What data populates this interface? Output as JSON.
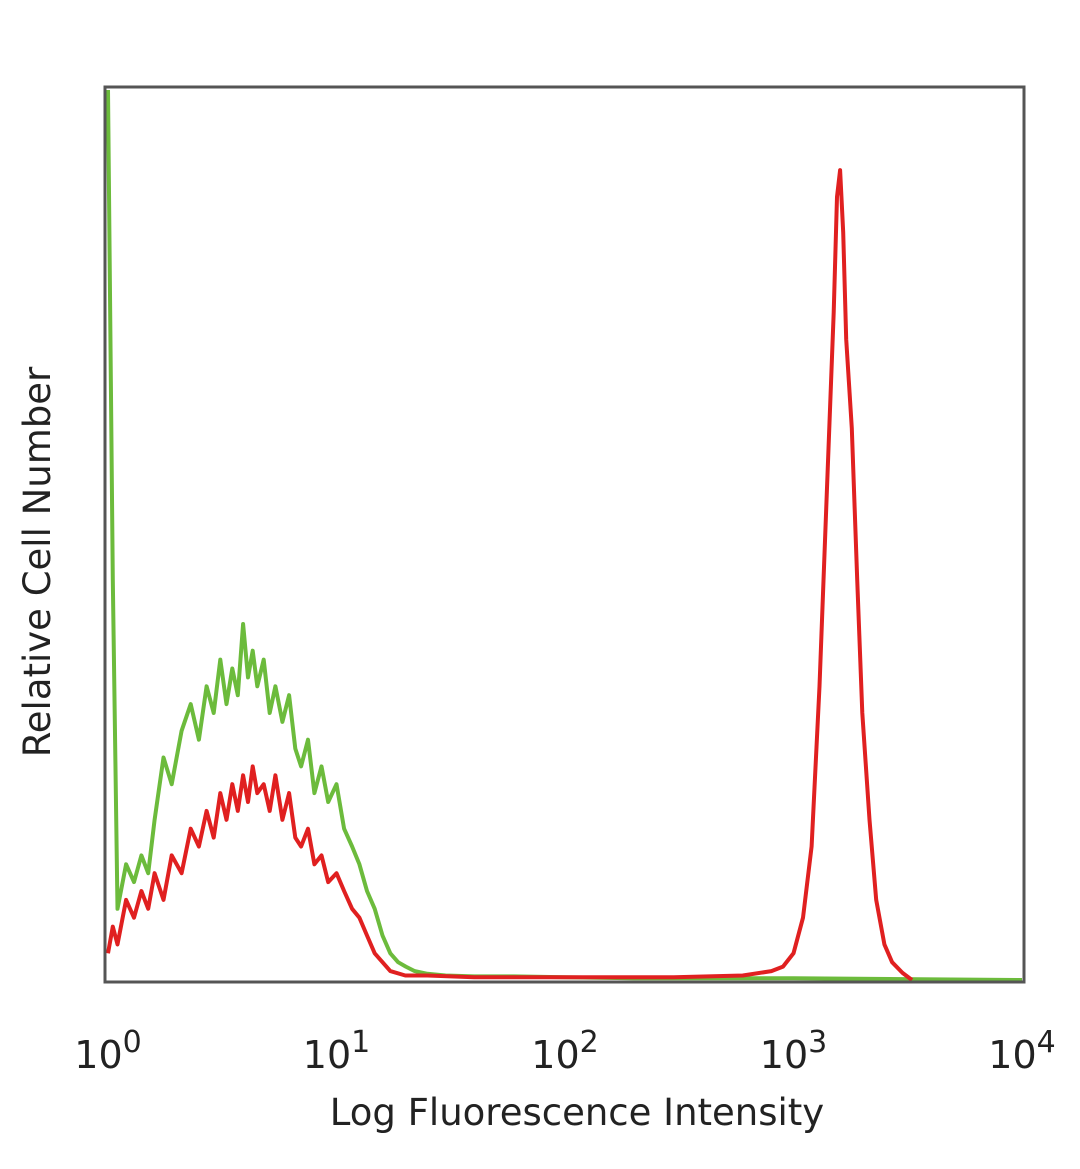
{
  "chart_data": {
    "type": "line",
    "xlabel": "Log Fluorescence Intensity",
    "ylabel": "Relative Cell Number",
    "x_scale": "log",
    "xlim": [
      1,
      10000
    ],
    "ylim": [
      0,
      100
    ],
    "grid": false,
    "x_ticks": [
      {
        "base": "10",
        "exp": "0",
        "value": 1
      },
      {
        "base": "10",
        "exp": "1",
        "value": 10
      },
      {
        "base": "10",
        "exp": "2",
        "value": 100
      },
      {
        "base": "10",
        "exp": "3",
        "value": 1000
      },
      {
        "base": "10",
        "exp": "4",
        "value": 10000
      }
    ],
    "series": [
      {
        "color": "#6cbb3c",
        "x": [
          1.0,
          1.05,
          1.1,
          1.2,
          1.3,
          1.4,
          1.5,
          1.6,
          1.75,
          1.9,
          2.1,
          2.3,
          2.5,
          2.7,
          2.9,
          3.1,
          3.3,
          3.5,
          3.7,
          3.9,
          4.1,
          4.3,
          4.5,
          4.8,
          5.1,
          5.4,
          5.8,
          6.2,
          6.6,
          7.0,
          7.5,
          8.0,
          8.6,
          9.2,
          10.0,
          10.8,
          11.7,
          12.6,
          13.6,
          14.7,
          15.9,
          17.2,
          18.6,
          20.1,
          22.0,
          25.0,
          30.0,
          40.0,
          60.0,
          100.0,
          200.0,
          500.0,
          1000.0,
          3000.0,
          10000.0
        ],
        "values": [
          100,
          45,
          8,
          13,
          11,
          14,
          12,
          18,
          25,
          22,
          28,
          31,
          27,
          33,
          30,
          36,
          31,
          35,
          32,
          40,
          34,
          37,
          33,
          36,
          30,
          33,
          29,
          32,
          26,
          24,
          27,
          21,
          24,
          20,
          22,
          17,
          15,
          13,
          10,
          8,
          5,
          3,
          2,
          1.5,
          1,
          0.7,
          0.5,
          0.4,
          0.4,
          0.3,
          0.2,
          0.2,
          0.2,
          0.1,
          0
        ]
      },
      {
        "color": "#e02020",
        "x": [
          1.0,
          1.05,
          1.1,
          1.2,
          1.3,
          1.4,
          1.5,
          1.6,
          1.75,
          1.9,
          2.1,
          2.3,
          2.5,
          2.7,
          2.9,
          3.1,
          3.3,
          3.5,
          3.7,
          3.9,
          4.1,
          4.3,
          4.5,
          4.8,
          5.1,
          5.4,
          5.8,
          6.2,
          6.6,
          7.0,
          7.5,
          8.0,
          8.6,
          9.2,
          10.0,
          10.8,
          11.7,
          12.6,
          13.6,
          14.7,
          15.9,
          17.2,
          20.0,
          25.0,
          40.0,
          100.0,
          300.0,
          600.0,
          800.0,
          900.0,
          1000.0,
          1100.0,
          1200.0,
          1300.0,
          1400.0,
          1500.0,
          1550.0,
          1600.0,
          1650.0,
          1700.0,
          1800.0,
          1900.0,
          2000.0,
          2150.0,
          2300.0,
          2500.0,
          2700.0,
          3000.0,
          3300.0
        ],
        "values": [
          3,
          6,
          4,
          9,
          7,
          10,
          8,
          12,
          9,
          14,
          12,
          17,
          15,
          19,
          16,
          21,
          18,
          22,
          19,
          23,
          20,
          24,
          21,
          22,
          19,
          23,
          18,
          21,
          16,
          15,
          17,
          13,
          14,
          11,
          12,
          10,
          8,
          7,
          5,
          3,
          2,
          1,
          0.5,
          0.5,
          0.3,
          0.3,
          0.3,
          0.5,
          1,
          1.5,
          3,
          7,
          15,
          33,
          55,
          75,
          88,
          91,
          84,
          72,
          62,
          45,
          30,
          18,
          9,
          4,
          2,
          0.8,
          0
        ]
      }
    ]
  }
}
